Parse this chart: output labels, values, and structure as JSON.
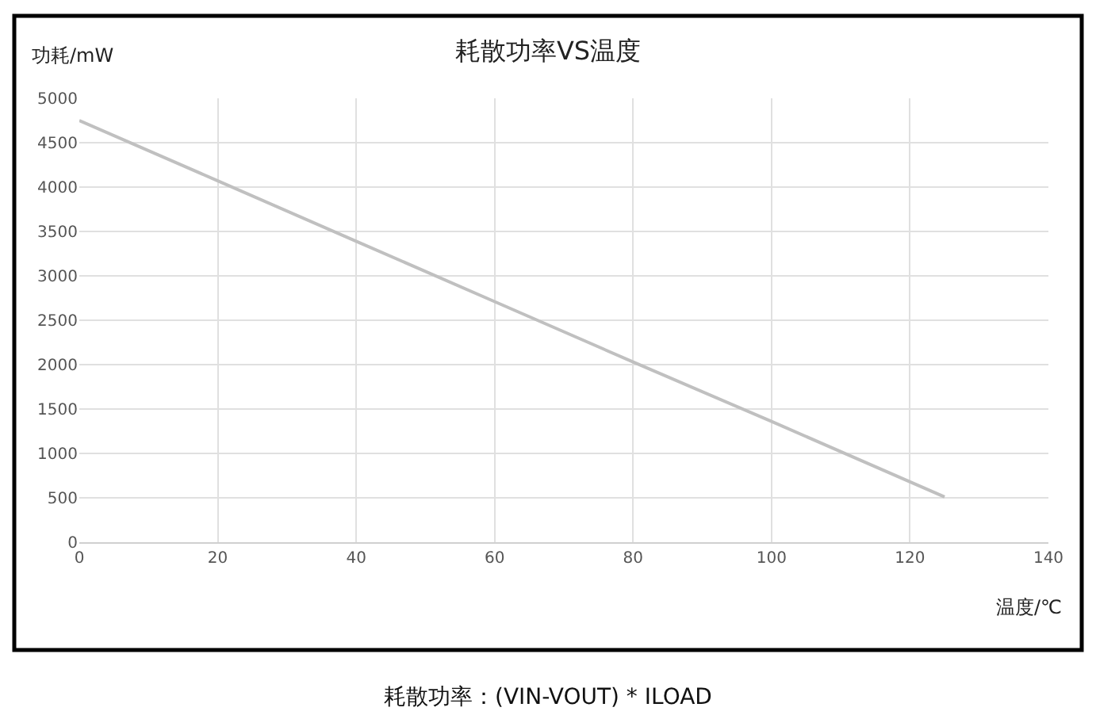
{
  "chart_data": {
    "type": "line",
    "title": "耗散功率VS温度",
    "xlabel": "温度/℃",
    "ylabel": "功耗/mW",
    "annotations": [
      "耗散功率：(VIN-VOUT) * ILOAD"
    ],
    "x": [
      0,
      20,
      40,
      60,
      80,
      100,
      125
    ],
    "series": [
      {
        "color": "#c0c0c0",
        "values": [
          4750,
          4070,
          3390,
          2710,
          2030,
          1360,
          510
        ]
      }
    ],
    "xlim": [
      0,
      140
    ],
    "xticks": [
      0,
      20,
      40,
      60,
      80,
      100,
      120,
      140
    ],
    "ylim": [
      0,
      5000
    ],
    "yticks": [
      0,
      500,
      1000,
      1500,
      2000,
      2500,
      3000,
      3500,
      4000,
      4500,
      5000
    ],
    "grid": true,
    "marker": "none",
    "line_style": "solid"
  }
}
